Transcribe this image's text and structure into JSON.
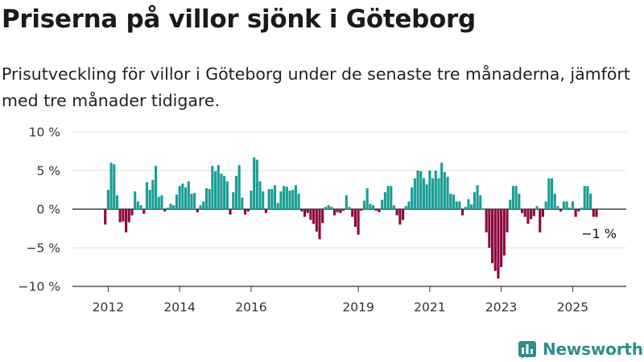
{
  "header": {
    "title": "Priserna på villor sjönk i Göteborg",
    "subtitle": "Prisutveckling för villor i Göteborg under de senaste tre månaderna, jämfört med tre månader tidigare."
  },
  "logo": {
    "text": "Newsworthy",
    "icon": "newsworthy-logo-icon",
    "color": "#2f8d8b"
  },
  "chart_data": {
    "type": "bar",
    "title": "",
    "xlabel": "",
    "ylabel": "",
    "ylim": [
      -10,
      10
    ],
    "y_ticks": [
      10,
      5,
      0,
      -5,
      -10
    ],
    "y_tick_labels": [
      "10 %",
      "5 %",
      "0 %",
      "−5 %",
      "−10 %"
    ],
    "x_ticks": [
      2012,
      2014,
      2016,
      2019,
      2021,
      2023,
      2025
    ],
    "x_tick_labels": [
      "2012",
      "2014",
      "2016",
      "2019",
      "2021",
      "2023",
      "2025"
    ],
    "x_range": [
      2011.0,
      2026.5
    ],
    "grid": true,
    "legend": "none",
    "colors": {
      "positive": "#1a9e96",
      "negative": "#8c0a3f"
    },
    "annotation": "−1 %",
    "series": [
      {
        "start_month": "2011-12",
        "frequency": "monthly",
        "values": [
          -2,
          2.5,
          6,
          5.8,
          1.8,
          -1.7,
          -1.6,
          -3,
          -1.7,
          -0.8,
          2.3,
          1,
          0.5,
          -0.6,
          3.5,
          2.5,
          3.8,
          5.6,
          1.6,
          1.8,
          -0.3,
          0.2,
          0.7,
          0.5,
          1.9,
          3,
          3.3,
          2.8,
          3.6,
          2,
          2.1,
          -0.4,
          0.5,
          1,
          2.7,
          2.6,
          5.6,
          4.9,
          5.7,
          4.6,
          4.3,
          3.6,
          -0.7,
          2.2,
          4.3,
          5.7,
          1.5,
          -0.7,
          -0.3,
          2.4,
          6.7,
          6.4,
          3.6,
          2.3,
          -0.5,
          2.6,
          2.6,
          3.1,
          0.8,
          2.3,
          3,
          2.9,
          2.4,
          2.5,
          3.1,
          2,
          -0.3,
          -1,
          -0.5,
          -1.4,
          -1.9,
          -2.9,
          -3.9,
          -1.8,
          0.3,
          0.5,
          0.3,
          -0.8,
          -0.4,
          -0.5,
          -0.2,
          1.8,
          0.3,
          -1,
          -2.3,
          -3.3,
          -0.2,
          1.1,
          2.7,
          0.7,
          0.5,
          -0.2,
          -0.4,
          1.2,
          2.2,
          3,
          3,
          0.5,
          -0.8,
          -2,
          -1.4,
          0.4,
          1,
          2.8,
          4,
          5,
          4.9,
          4,
          3.2,
          5,
          4,
          5,
          4,
          6,
          4.8,
          4.2,
          2,
          1.9,
          1,
          1,
          -0.8,
          0.3,
          1.3,
          0.6,
          2.2,
          3.1,
          1.8,
          0,
          -3,
          -5,
          -7,
          -8,
          -9,
          -7.5,
          -6,
          -3,
          1.2,
          3,
          3,
          2,
          -0.5,
          -1,
          -1.9,
          -1.3,
          -0.9,
          0.4,
          -3,
          -1,
          1,
          4,
          4,
          2,
          0.4,
          -0.3,
          1,
          1,
          0.2,
          1,
          -1,
          -0.3,
          0.2,
          3,
          3,
          2,
          -1,
          -1
        ]
      }
    ]
  }
}
